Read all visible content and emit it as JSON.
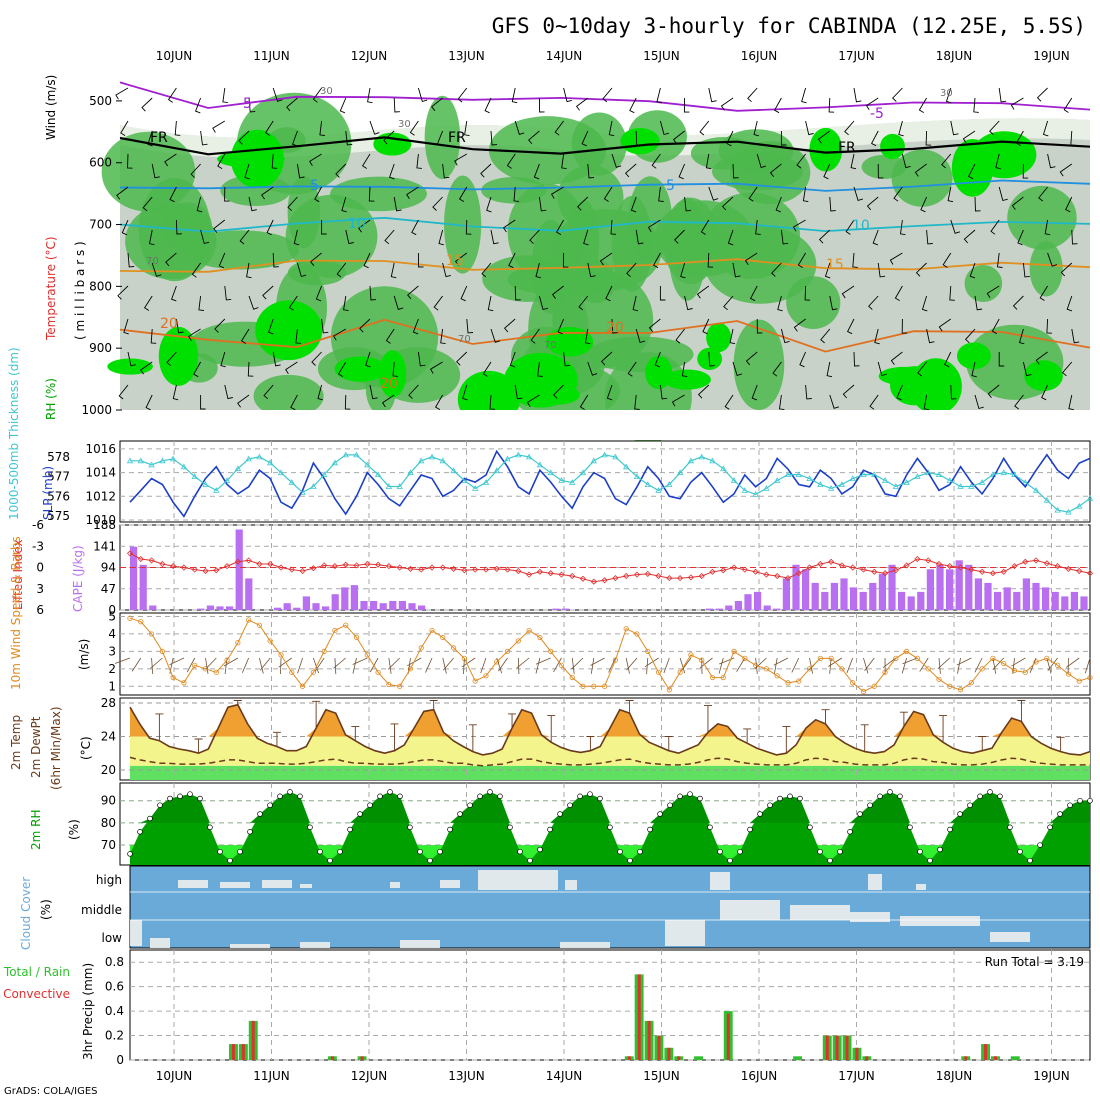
{
  "title": "GFS 0~10day 3-hourly for CABINDA (12.25E, 5.5S)",
  "credit": "GrADS: COLA/IGES",
  "dates": [
    "10JUN",
    "11JUN",
    "12JUN",
    "13JUN",
    "14JUN",
    "15JUN",
    "16JUN",
    "17JUN",
    "18JUN",
    "19JUN"
  ],
  "colors": {
    "rh_light": "#c8d2c8",
    "rh_mid": "#4cb84c",
    "rh_high": "#00e000",
    "slp": "#1c3fc8",
    "thickness": "#3ec8d0",
    "cape": "#b870f0",
    "lifted": "#e03030",
    "wind": "#e08a20",
    "temp": "#f0a030",
    "temp_light": "#f4f48c",
    "rh2m": "#00a000",
    "cloud": "#6aaad8",
    "precip_total": "#30c030",
    "precip_conv": "#e03030"
  },
  "chart_data": [
    {
      "type": "heatmap",
      "name": "upper_air",
      "ylabel_parts": [
        "RH (%)",
        "Temperature (°C)",
        "Wind (m/s)",
        "( m i l l i b a r s )"
      ],
      "yticks": [
        500,
        600,
        700,
        800,
        900,
        1000
      ],
      "ylim": [
        1000,
        450
      ],
      "isotherms": [
        {
          "label": "-5",
          "color": "#a020d0",
          "p": [
            470,
            505,
            495,
            500,
            495,
            490,
            505,
            520,
            505,
            500,
            510,
            515
          ]
        },
        {
          "label": "FR",
          "color": "#000000",
          "p": [
            560,
            580,
            575,
            565,
            575,
            580,
            575,
            570,
            578,
            575,
            572,
            575
          ]
        },
        {
          "label": "5",
          "color": "#2090e0",
          "p": [
            640,
            635,
            640,
            645,
            640,
            635,
            640,
            638,
            640,
            636,
            635,
            635
          ]
        },
        {
          "label": "10",
          "color": "#20b8c8",
          "p": [
            700,
            705,
            700,
            695,
            700,
            705,
            700,
            702,
            705,
            700,
            702,
            700
          ]
        },
        {
          "label": "15",
          "color": "#e09020",
          "p": [
            775,
            770,
            760,
            765,
            770,
            765,
            770,
            760,
            765,
            770,
            768,
            770
          ]
        },
        {
          "label": "20",
          "color": "#e07020",
          "p": [
            870,
            880,
            900,
            860,
            890,
            870,
            880,
            860,
            900,
            870,
            880,
            900
          ]
        }
      ],
      "contour_labels": [
        "-5",
        "-5",
        "FR",
        "FR",
        "FR",
        "5",
        "5",
        "10",
        "10",
        "15",
        "15",
        "20",
        "20",
        "20",
        "30",
        "30",
        "30",
        "70",
        "70",
        "70"
      ]
    },
    {
      "type": "line",
      "name": "slp_thickness",
      "left_label": "1000-500mb Thickness (dm)",
      "right_label": "SLP (mb)",
      "left_ticks": [
        578,
        577,
        576,
        575
      ],
      "right_ticks": [
        1016,
        1014,
        1012,
        1010
      ],
      "slp": [
        1011.5,
        1012.5,
        1013.5,
        1013,
        1011.5,
        1010.3,
        1012,
        1013.5,
        1014.5,
        1013,
        1012.2,
        1012.8,
        1014.2,
        1013.5,
        1011.5,
        1011,
        1012.5,
        1014.8,
        1013.5,
        1011.8,
        1010.5,
        1012,
        1014,
        1013,
        1011.8,
        1011.2,
        1012.5,
        1013.8,
        1013.5,
        1012,
        1012.5,
        1013.5,
        1013.2,
        1013.8,
        1015.8,
        1014.5,
        1012.8,
        1012.2,
        1014.2,
        1013.2,
        1012,
        1011,
        1012.8,
        1014,
        1013.5,
        1011.8,
        1011.3,
        1012.8,
        1014.5,
        1013.5,
        1012,
        1011.8,
        1013.2,
        1014,
        1012.8,
        1011.5,
        1012.2,
        1013.8,
        1012.8,
        1013.5,
        1015.2,
        1014.3,
        1013,
        1012.8,
        1014.2,
        1013.5,
        1012.2,
        1012.8,
        1014.2,
        1013.8,
        1012.2,
        1012,
        1013.8,
        1015.2,
        1014,
        1012.5,
        1013,
        1014.5,
        1013.2,
        1012.2,
        1013.5,
        1015.2,
        1013.8,
        1012.8,
        1014.2,
        1015.5,
        1014.2,
        1013.5,
        1014.8,
        1015.2
      ],
      "thickness": [
        577.8,
        577.8,
        577.6,
        577.8,
        577.9,
        577.5,
        577,
        576.6,
        576.3,
        576.8,
        577.4,
        577.9,
        578,
        577.7,
        577.2,
        576.7,
        576.2,
        576.5,
        577.1,
        577.7,
        578.1,
        578.1,
        577.6,
        577.1,
        576.5,
        576.5,
        577.2,
        577.8,
        578,
        577.8,
        577.3,
        576.8,
        576.4,
        576.7,
        577.3,
        577.9,
        578.1,
        578,
        577.6,
        577.2,
        576.8,
        576.7,
        577.2,
        577.8,
        578.1,
        578,
        577.5,
        577,
        576.6,
        576.3,
        576.6,
        577.2,
        577.8,
        578,
        577.8,
        577.4,
        576.8,
        576.3,
        576.1,
        576.4,
        576.8,
        577.1,
        577.1,
        576.9,
        576.6,
        576.4,
        576.6,
        576.9,
        577.1,
        577.1,
        576.8,
        576.5,
        576.7,
        577,
        577.2,
        577.1,
        576.8,
        576.5,
        576.5,
        576.7,
        577.1,
        577.2,
        577.1,
        576.7,
        576.3,
        575.8,
        575.3,
        575.2,
        575.5,
        575.9
      ]
    },
    {
      "type": "bar",
      "name": "cape_li",
      "left_label": "Lifted Index",
      "right_label": "CAPE (J/kg)",
      "left_ticks": [
        "-6",
        "-3",
        "0",
        "3",
        "6"
      ],
      "right_ticks": [
        "188",
        "141",
        "94",
        "47",
        "0"
      ],
      "cape": [
        140,
        100,
        10,
        0,
        0,
        0,
        0,
        3,
        10,
        8,
        8,
        178,
        70,
        0,
        0,
        5,
        15,
        5,
        30,
        15,
        8,
        35,
        50,
        55,
        20,
        20,
        15,
        20,
        20,
        15,
        10,
        0,
        0,
        0,
        0,
        0,
        0,
        0,
        0,
        0,
        0,
        0,
        0,
        0,
        3,
        3,
        0,
        0,
        0,
        0,
        0,
        0,
        0,
        0,
        0,
        0,
        0,
        0,
        0,
        0,
        3,
        3,
        10,
        20,
        35,
        40,
        10,
        3,
        70,
        100,
        90,
        60,
        40,
        60,
        70,
        50,
        40,
        60,
        80,
        100,
        40,
        30,
        40,
        90,
        100,
        90,
        110,
        100,
        70,
        60,
        40,
        50,
        40,
        70,
        60,
        50,
        40,
        30,
        40,
        30
      ],
      "lifted_index": [
        -2,
        -1.2,
        -1,
        -0.5,
        -0.2,
        0,
        0.3,
        0.5,
        0.4,
        -0.2,
        -0.8,
        -1,
        -0.5,
        -0.5,
        0,
        0.3,
        0.5,
        0.1,
        -0.3,
        -0.2,
        -0.4,
        -0.3,
        -0.5,
        -0.4,
        -0.2,
        0,
        0.2,
        0.3,
        0,
        0,
        0.2,
        0.4,
        0.3,
        0.3,
        0.2,
        0.3,
        0.5,
        1,
        0.6,
        0.8,
        1,
        1.2,
        1.6,
        2,
        1.8,
        1.5,
        1.2,
        1,
        0.9,
        1.2,
        1.5,
        1.5,
        1.4,
        1.2,
        0.6,
        0.4,
        0,
        0.3,
        0.6,
        1,
        1.2,
        1.5,
        0.8,
        0,
        -0.5,
        -0.8,
        -0.3,
        0,
        0.3,
        0.6,
        0.8,
        0.4,
        -0.3,
        -1.2,
        -1,
        -0.5,
        -0.2,
        0,
        0.3,
        0.6,
        0.8,
        0.6,
        -0.2,
        -0.8,
        -1,
        -0.6,
        -0.2,
        0.2,
        0.5,
        0.8
      ],
      "zero_line": 0
    },
    {
      "type": "line",
      "name": "wind10m",
      "left_label": "10m Wind Speed & Barbs",
      "unit": "(m/s)",
      "yticks": [
        1,
        2,
        3,
        4,
        5
      ],
      "speed": [
        4.9,
        4.7,
        4,
        3,
        1.5,
        1.2,
        2.2,
        2,
        1.8,
        2.5,
        3.5,
        4.8,
        4.5,
        3.6,
        2.8,
        1.8,
        1,
        1.8,
        3,
        4.2,
        4.5,
        3.8,
        2.8,
        1.8,
        1.1,
        1,
        2,
        3.2,
        4.2,
        3.8,
        3.2,
        2.6,
        1.3,
        1.6,
        2.4,
        3,
        3.6,
        4.2,
        3.8,
        3,
        2.2,
        1.5,
        1,
        1,
        1,
        2.5,
        4.3,
        4,
        3,
        1.8,
        0.8,
        1.8,
        2.8,
        2.5,
        1.5,
        1.5,
        3,
        2.6,
        2.2,
        2,
        1.6,
        1.2,
        1.3,
        2,
        2.6,
        2.6,
        2,
        1.2,
        0.7,
        1,
        1.8,
        2.6,
        3,
        2.6,
        2,
        1.4,
        1,
        0.8,
        1.2,
        2,
        2.6,
        2.3,
        1.9,
        1.8,
        2.4,
        2.6,
        2.2,
        1.7,
        1.3,
        1.5
      ]
    },
    {
      "type": "area",
      "name": "temp2m",
      "left_labels": [
        "2m Temp",
        "2m DewPt",
        "(6hr Min/Max)"
      ],
      "unit": "(°C)",
      "yticks": [
        20,
        24,
        28
      ],
      "temp": [
        27.5,
        25.5,
        23.8,
        23.5,
        22.8,
        22.5,
        22.3,
        22,
        22.5,
        25,
        27.5,
        27.8,
        25.5,
        23.8,
        23.2,
        22.8,
        22.3,
        22.3,
        22.8,
        25,
        27.2,
        26.8,
        24.2,
        23.5,
        22.8,
        22.3,
        22,
        22.3,
        23,
        25,
        27,
        27.2,
        24.5,
        23.5,
        22.8,
        22.2,
        21.8,
        22,
        22.5,
        25,
        27.2,
        26.8,
        24.2,
        23.3,
        22.7,
        22.3,
        22.1,
        22.3,
        22.8,
        25,
        27.2,
        26.8,
        24.3,
        23.3,
        22.8,
        22.3,
        22,
        22.5,
        23,
        24.5,
        25.5,
        25.2,
        23.8,
        23.2,
        22.6,
        22.2,
        21.8,
        22,
        23,
        25,
        26,
        25.5,
        24,
        23.2,
        22.6,
        22.2,
        22,
        22.2,
        23,
        25.2,
        27,
        26.6,
        24.2,
        23.3,
        22.6,
        22.2,
        22,
        22.3,
        22.6,
        24.5,
        26.2,
        25.8,
        24,
        23.2,
        22.6,
        22.2,
        21.9,
        21.8,
        22.2
      ],
      "dewpoint": [
        21.5,
        21.2,
        21,
        20.8,
        20.8,
        20.7,
        20.7,
        20.7,
        20.8,
        21,
        21.2,
        21.2,
        21,
        20.8,
        20.8,
        20.8,
        20.7,
        20.7,
        20.8,
        21,
        21.2,
        21.3,
        21,
        20.8,
        20.8,
        20.7,
        20.7,
        20.7,
        20.8,
        21,
        21.2,
        21.2,
        21,
        20.8,
        20.8,
        20.6,
        20.5,
        20.6,
        20.7,
        21,
        21.3,
        21.3,
        21,
        20.8,
        20.7,
        20.6,
        20.6,
        20.7,
        20.8,
        21,
        21.2,
        21.3,
        21,
        20.8,
        20.7,
        20.6,
        20.6,
        20.7,
        20.9,
        21.2,
        21.4,
        21.3,
        21,
        20.8,
        20.7,
        20.6,
        20.6,
        20.6,
        20.8,
        21.2,
        21.4,
        21.3,
        21,
        20.9,
        20.7,
        20.6,
        20.6,
        20.6,
        20.8,
        21.2,
        21.4,
        21.3,
        21,
        20.9,
        20.7,
        20.6,
        20.6,
        20.7,
        20.9,
        21.2,
        21.4,
        21.3,
        21,
        20.8,
        20.7,
        20.6,
        20.6,
        20.6,
        20.6
      ]
    },
    {
      "type": "area",
      "name": "rh2m",
      "left_label": "2m RH",
      "unit": "(%)",
      "yticks": [
        70,
        80,
        90
      ],
      "rh": [
        66,
        76,
        82,
        88,
        91,
        92,
        93,
        91,
        78,
        67,
        63,
        67,
        76,
        84,
        88,
        92,
        94,
        92,
        78,
        67,
        63,
        67,
        77,
        84,
        88,
        92,
        94,
        92,
        78,
        67,
        63,
        67,
        77,
        84,
        88,
        92,
        94,
        92,
        78,
        67,
        63,
        68,
        77,
        84,
        88,
        92,
        93,
        91,
        78,
        67,
        63,
        67,
        77,
        84,
        88,
        92,
        93,
        91,
        78,
        67,
        63,
        67,
        77,
        84,
        88,
        91,
        92,
        91,
        78,
        67,
        63,
        67,
        76,
        84,
        88,
        92,
        94,
        92,
        78,
        67,
        63,
        68,
        77,
        84,
        88,
        92,
        94,
        92,
        78,
        67,
        63,
        70,
        78,
        84,
        88,
        90,
        90
      ]
    },
    {
      "type": "area",
      "name": "cloud_cover",
      "left_label": "Cloud Cover",
      "unit": "(%)",
      "levels": [
        "high",
        "middle",
        "low"
      ]
    },
    {
      "type": "bar",
      "name": "precip",
      "left_labels": [
        "Total / Rain",
        "Convective"
      ],
      "ylabel": "3hr Precip (mm)",
      "yticks": [
        0,
        0.2,
        0.4,
        0.6,
        0.8
      ],
      "ylim": [
        0,
        0.9
      ],
      "run_total": "Run Total = 3.19",
      "events": [
        {
          "i": 10,
          "total": 0.13,
          "conv": 0.13
        },
        {
          "i": 11,
          "total": 0.13,
          "conv": 0.13
        },
        {
          "i": 12,
          "total": 0.32,
          "conv": 0.32
        },
        {
          "i": 20,
          "total": 0.03,
          "conv": 0.03
        },
        {
          "i": 23,
          "total": 0.03,
          "conv": 0.03
        },
        {
          "i": 50,
          "total": 0.03,
          "conv": 0.03
        },
        {
          "i": 51,
          "total": 0.7,
          "conv": 0.7
        },
        {
          "i": 52,
          "total": 0.32,
          "conv": 0.32
        },
        {
          "i": 53,
          "total": 0.2,
          "conv": 0.2
        },
        {
          "i": 54,
          "total": 0.1,
          "conv": 0.1
        },
        {
          "i": 55,
          "total": 0.03,
          "conv": 0.03
        },
        {
          "i": 57,
          "total": 0.03,
          "conv": 0
        },
        {
          "i": 60,
          "total": 0.4,
          "conv": 0.38
        },
        {
          "i": 67,
          "total": 0.03,
          "conv": 0
        },
        {
          "i": 70,
          "total": 0.2,
          "conv": 0.2
        },
        {
          "i": 71,
          "total": 0.2,
          "conv": 0.2
        },
        {
          "i": 72,
          "total": 0.2,
          "conv": 0.2
        },
        {
          "i": 73,
          "total": 0.1,
          "conv": 0.1
        },
        {
          "i": 74,
          "total": 0.03,
          "conv": 0.03
        },
        {
          "i": 84,
          "total": 0.03,
          "conv": 0.03
        },
        {
          "i": 86,
          "total": 0.13,
          "conv": 0.13
        },
        {
          "i": 87,
          "total": 0.03,
          "conv": 0.03
        },
        {
          "i": 89,
          "total": 0.03,
          "conv": 0
        }
      ]
    }
  ]
}
